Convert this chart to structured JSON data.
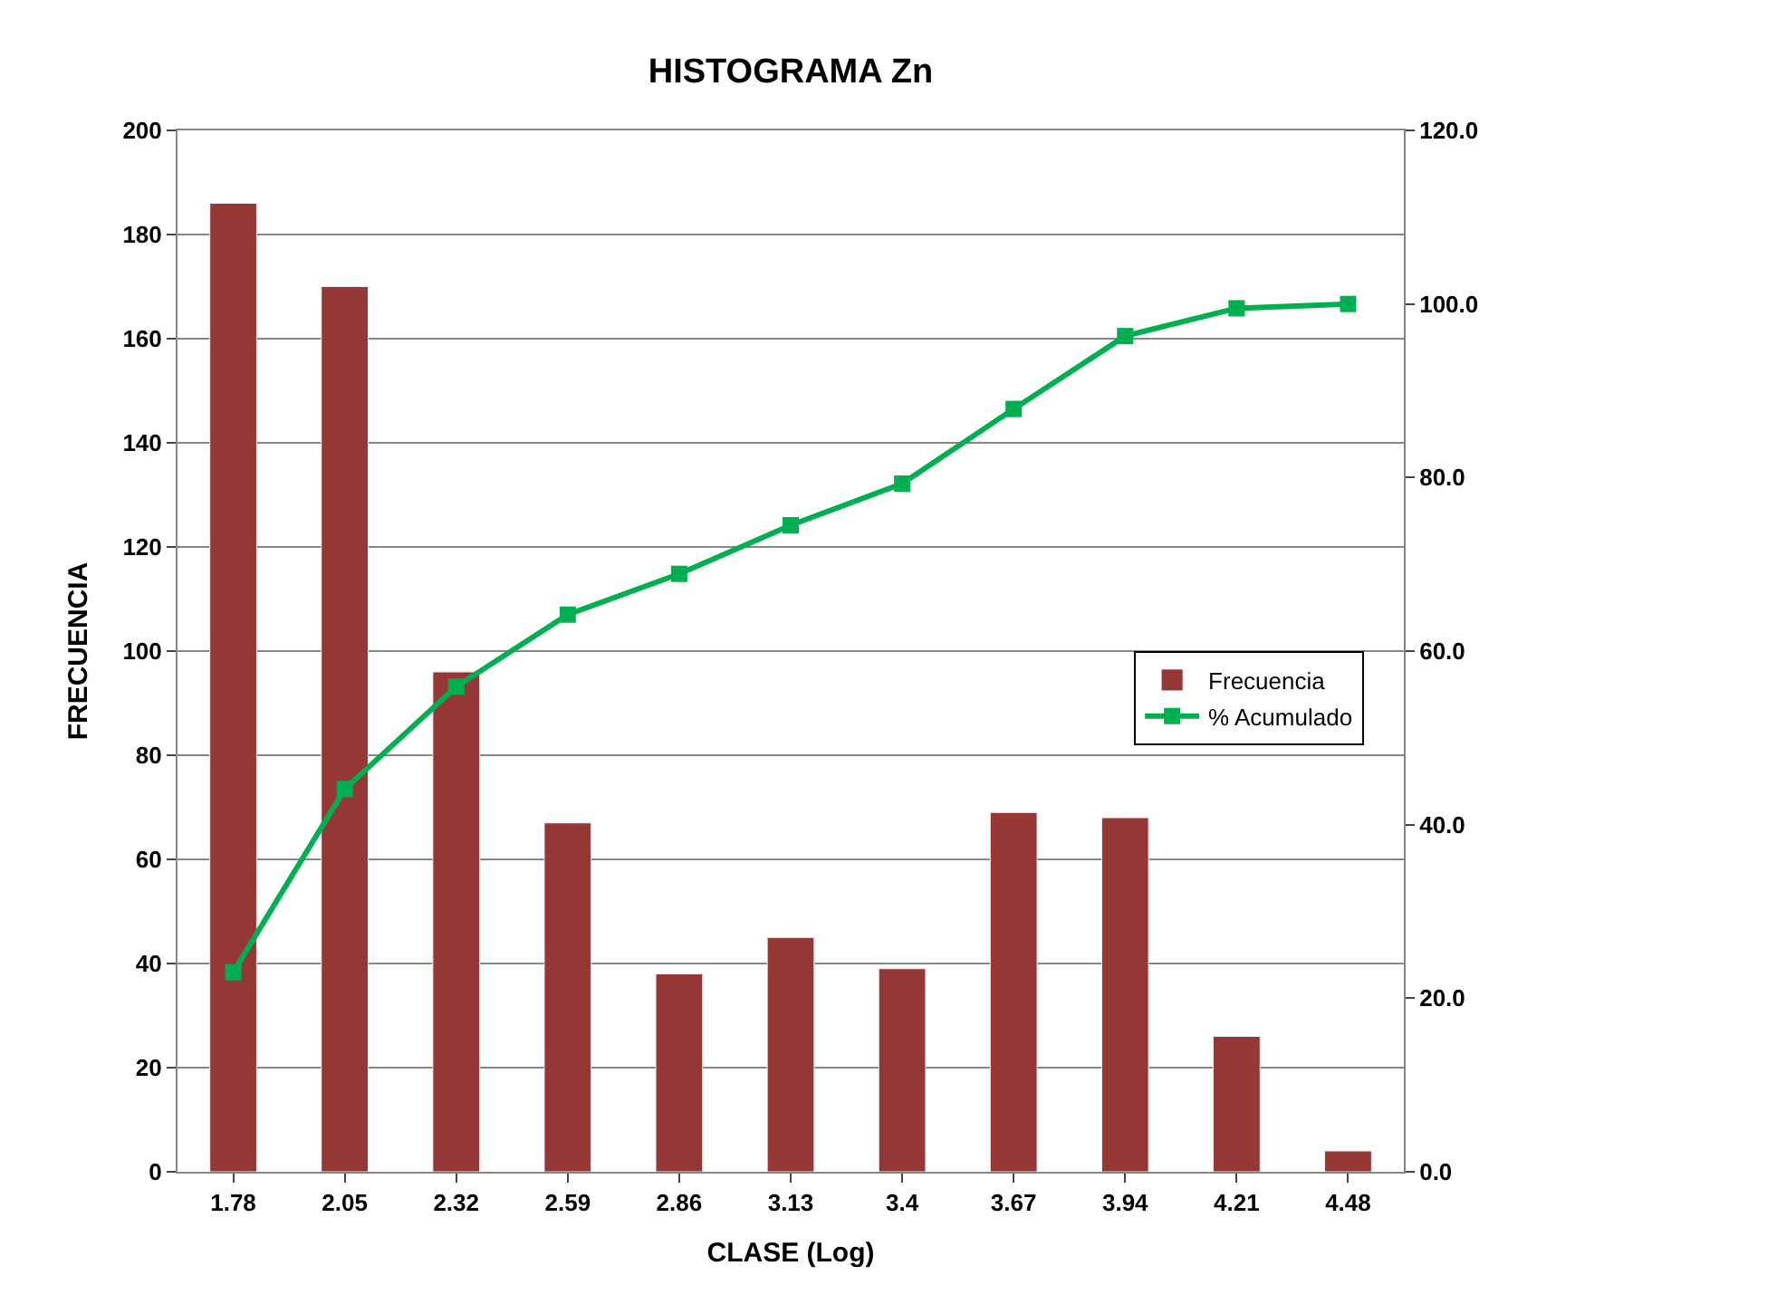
{
  "chart_data": {
    "type": "bar",
    "title": "HISTOGRAMA Zn",
    "xlabel": "CLASE (Log)",
    "ylabel": "FRECUENCIA",
    "categories": [
      "1.78",
      "2.05",
      "2.32",
      "2.59",
      "2.86",
      "3.13",
      "3.4",
      "3.67",
      "3.94",
      "4.21",
      "4.48"
    ],
    "series": [
      {
        "name": "Frecuencia",
        "color": "#953735",
        "values": [
          186,
          170,
          96,
          67,
          38,
          45,
          39,
          69,
          68,
          26,
          4
        ]
      },
      {
        "name": "% Acumulado",
        "type": "line",
        "axis": "y2",
        "color": "#00b050",
        "marker": "square",
        "values": [
          23.0,
          44.1,
          55.9,
          64.2,
          68.9,
          74.5,
          79.3,
          87.9,
          96.3,
          99.5,
          100.0
        ]
      }
    ],
    "ylim": [
      0,
      200
    ],
    "yticks": [
      0,
      20,
      40,
      60,
      80,
      100,
      120,
      140,
      160,
      180,
      200
    ],
    "y2lim": [
      0,
      120
    ],
    "y2ticks": [
      {
        "value": 0,
        "label": "0.0"
      },
      {
        "value": 20,
        "label": "20.0"
      },
      {
        "value": 40,
        "label": "40.0"
      },
      {
        "value": 60,
        "label": "60.0"
      },
      {
        "value": 80,
        "label": "80.0"
      },
      {
        "value": 100,
        "label": "100.0"
      },
      {
        "value": 120,
        "label": "120.0"
      }
    ],
    "grid": "y",
    "legend": "right"
  }
}
